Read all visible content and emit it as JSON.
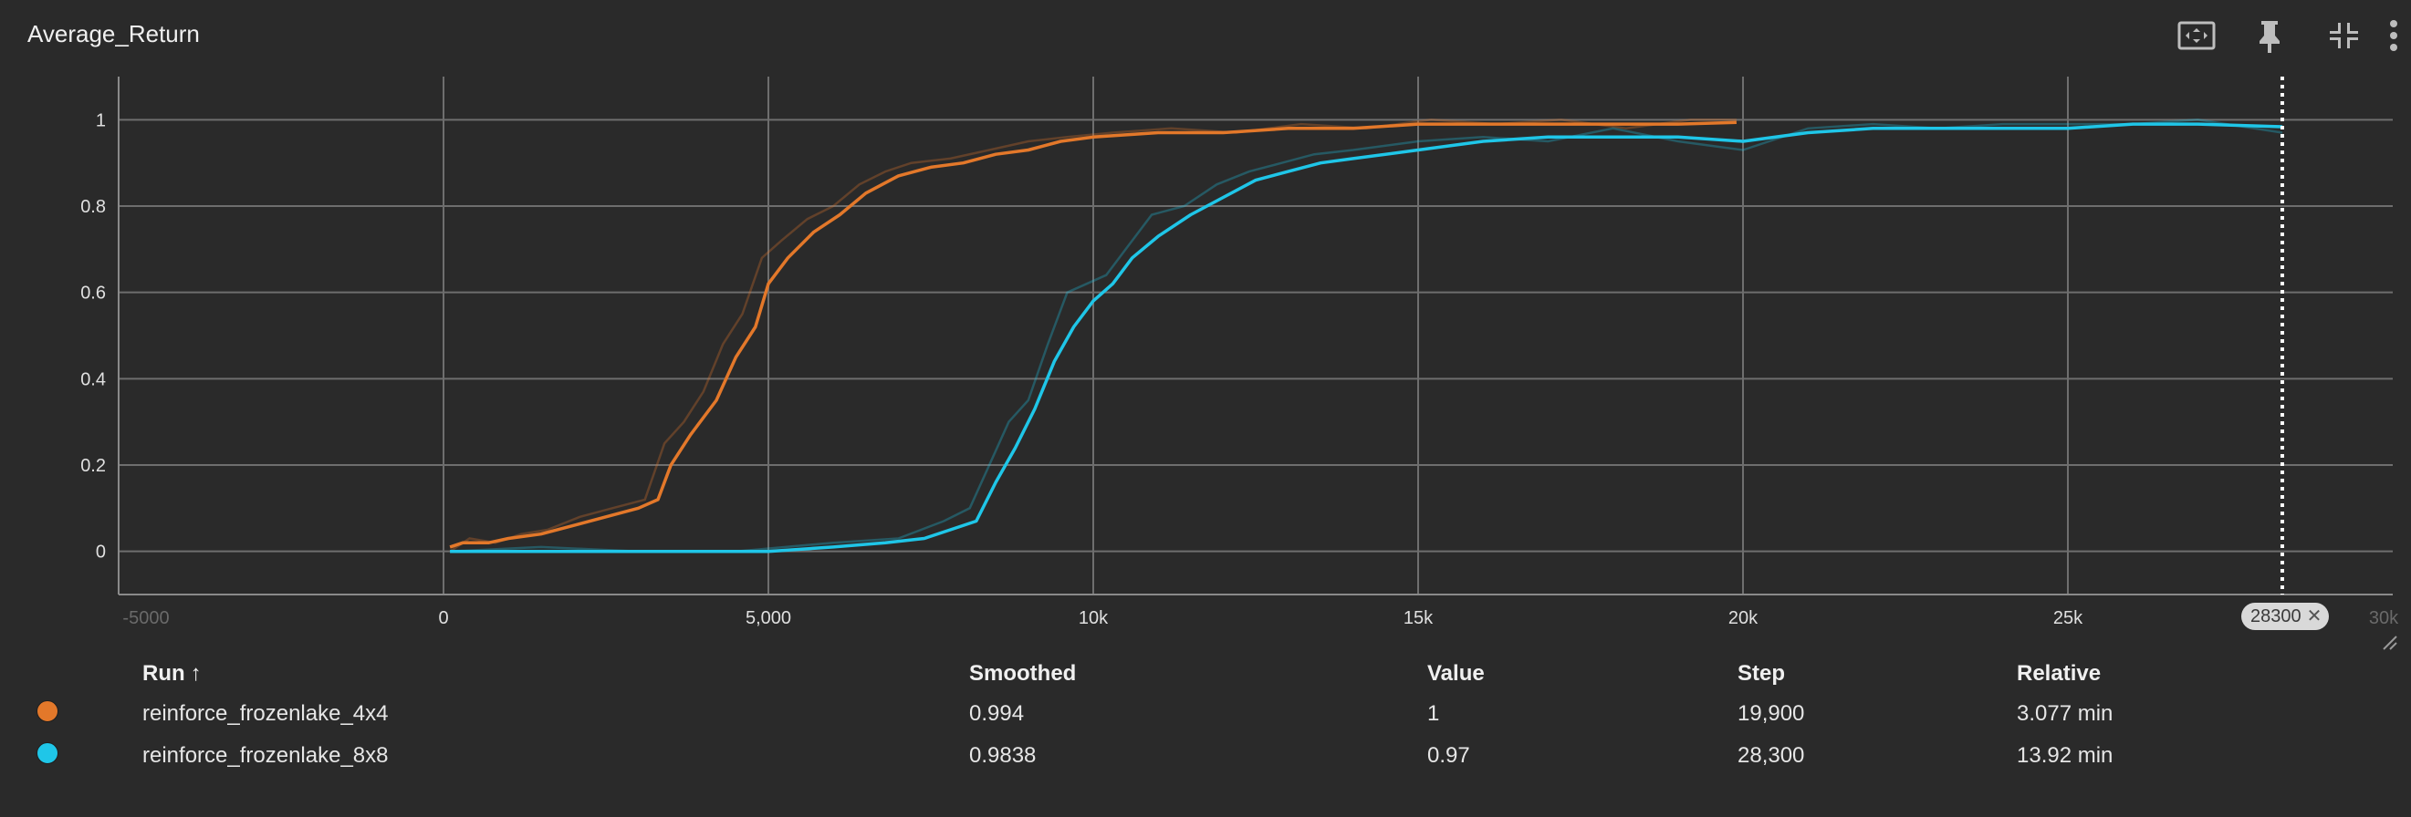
{
  "header": {
    "title": "Average_Return",
    "icons": [
      "fit-domain-icon",
      "pin-icon",
      "collapse-icon",
      "more-vert-icon"
    ]
  },
  "chart_data": {
    "type": "line",
    "title": "Average_Return",
    "xlabel": "",
    "ylabel": "",
    "xlim": [
      -5000,
      30000
    ],
    "ylim": [
      -0.1,
      1.1
    ],
    "x_ticks": [
      "0",
      "5,000",
      "10k",
      "15k",
      "20k",
      "25k"
    ],
    "x_tick_values": [
      0,
      5000,
      10000,
      15000,
      20000,
      25000
    ],
    "x_ticks_faint": [
      "-5000",
      "30k"
    ],
    "y_ticks": [
      "0",
      "0.2",
      "0.4",
      "0.6",
      "0.8",
      "1"
    ],
    "y_tick_values": [
      0,
      0.2,
      0.4,
      0.6,
      0.8,
      1.0
    ],
    "grid": true,
    "marker_step": 28300,
    "marker_label": "28300",
    "series": [
      {
        "name": "reinforce_frozenlake_4x4",
        "color": "#e3782a",
        "smoothed": [
          [
            100,
            0.01
          ],
          [
            300,
            0.02
          ],
          [
            700,
            0.02
          ],
          [
            1000,
            0.03
          ],
          [
            1500,
            0.04
          ],
          [
            2000,
            0.06
          ],
          [
            2500,
            0.08
          ],
          [
            3000,
            0.1
          ],
          [
            3300,
            0.12
          ],
          [
            3500,
            0.2
          ],
          [
            3800,
            0.27
          ],
          [
            4200,
            0.35
          ],
          [
            4500,
            0.45
          ],
          [
            4800,
            0.52
          ],
          [
            5000,
            0.62
          ],
          [
            5300,
            0.68
          ],
          [
            5700,
            0.74
          ],
          [
            6100,
            0.78
          ],
          [
            6500,
            0.83
          ],
          [
            7000,
            0.87
          ],
          [
            7500,
            0.89
          ],
          [
            8000,
            0.9
          ],
          [
            8500,
            0.92
          ],
          [
            9000,
            0.93
          ],
          [
            9500,
            0.95
          ],
          [
            10000,
            0.96
          ],
          [
            11000,
            0.97
          ],
          [
            12000,
            0.97
          ],
          [
            13000,
            0.98
          ],
          [
            14000,
            0.98
          ],
          [
            15000,
            0.99
          ],
          [
            16000,
            0.99
          ],
          [
            17000,
            0.99
          ],
          [
            18000,
            0.99
          ],
          [
            19000,
            0.99
          ],
          [
            19900,
            0.994
          ]
        ],
        "raw": [
          [
            100,
            0.0
          ],
          [
            400,
            0.03
          ],
          [
            800,
            0.02
          ],
          [
            1200,
            0.04
          ],
          [
            1600,
            0.05
          ],
          [
            2100,
            0.08
          ],
          [
            2600,
            0.1
          ],
          [
            3100,
            0.12
          ],
          [
            3400,
            0.25
          ],
          [
            3700,
            0.3
          ],
          [
            4000,
            0.37
          ],
          [
            4300,
            0.48
          ],
          [
            4600,
            0.55
          ],
          [
            4900,
            0.68
          ],
          [
            5200,
            0.72
          ],
          [
            5600,
            0.77
          ],
          [
            6000,
            0.8
          ],
          [
            6400,
            0.85
          ],
          [
            6800,
            0.88
          ],
          [
            7200,
            0.9
          ],
          [
            7800,
            0.91
          ],
          [
            8400,
            0.93
          ],
          [
            9000,
            0.95
          ],
          [
            9600,
            0.96
          ],
          [
            10300,
            0.97
          ],
          [
            11200,
            0.98
          ],
          [
            12200,
            0.97
          ],
          [
            13200,
            0.99
          ],
          [
            14200,
            0.98
          ],
          [
            15200,
            1.0
          ],
          [
            16200,
            0.99
          ],
          [
            17200,
            1.0
          ],
          [
            18200,
            0.98
          ],
          [
            19200,
            1.0
          ],
          [
            19900,
            1.0
          ]
        ],
        "smoothed_last": "0.994",
        "value": "1",
        "step": "19,900",
        "relative": "3.077 min"
      },
      {
        "name": "reinforce_frozenlake_8x8",
        "color": "#1fc6e8",
        "smoothed": [
          [
            100,
            0.0
          ],
          [
            1000,
            0.0
          ],
          [
            2000,
            0.0
          ],
          [
            3000,
            0.0
          ],
          [
            4000,
            0.0
          ],
          [
            5000,
            0.0
          ],
          [
            6000,
            0.01
          ],
          [
            6800,
            0.02
          ],
          [
            7400,
            0.03
          ],
          [
            7800,
            0.05
          ],
          [
            8200,
            0.07
          ],
          [
            8500,
            0.16
          ],
          [
            8800,
            0.24
          ],
          [
            9100,
            0.33
          ],
          [
            9400,
            0.44
          ],
          [
            9700,
            0.52
          ],
          [
            10000,
            0.58
          ],
          [
            10300,
            0.62
          ],
          [
            10600,
            0.68
          ],
          [
            11000,
            0.73
          ],
          [
            11500,
            0.78
          ],
          [
            12000,
            0.82
          ],
          [
            12500,
            0.86
          ],
          [
            13000,
            0.88
          ],
          [
            13500,
            0.9
          ],
          [
            14000,
            0.91
          ],
          [
            15000,
            0.93
          ],
          [
            16000,
            0.95
          ],
          [
            17000,
            0.96
          ],
          [
            18000,
            0.96
          ],
          [
            19000,
            0.96
          ],
          [
            20000,
            0.95
          ],
          [
            21000,
            0.97
          ],
          [
            22000,
            0.98
          ],
          [
            23000,
            0.98
          ],
          [
            24000,
            0.98
          ],
          [
            25000,
            0.98
          ],
          [
            26000,
            0.99
          ],
          [
            27000,
            0.99
          ],
          [
            28300,
            0.9838
          ]
        ],
        "raw": [
          [
            100,
            0.0
          ],
          [
            1500,
            0.01
          ],
          [
            3000,
            0.0
          ],
          [
            4500,
            0.0
          ],
          [
            6000,
            0.02
          ],
          [
            7000,
            0.03
          ],
          [
            7700,
            0.07
          ],
          [
            8100,
            0.1
          ],
          [
            8400,
            0.2
          ],
          [
            8700,
            0.3
          ],
          [
            9000,
            0.35
          ],
          [
            9300,
            0.48
          ],
          [
            9600,
            0.6
          ],
          [
            9900,
            0.62
          ],
          [
            10200,
            0.64
          ],
          [
            10500,
            0.7
          ],
          [
            10900,
            0.78
          ],
          [
            11400,
            0.8
          ],
          [
            11900,
            0.85
          ],
          [
            12400,
            0.88
          ],
          [
            12900,
            0.9
          ],
          [
            13400,
            0.92
          ],
          [
            14000,
            0.93
          ],
          [
            15000,
            0.95
          ],
          [
            16000,
            0.96
          ],
          [
            17000,
            0.95
          ],
          [
            18000,
            0.98
          ],
          [
            19000,
            0.95
          ],
          [
            20000,
            0.93
          ],
          [
            21000,
            0.98
          ],
          [
            22000,
            0.99
          ],
          [
            23000,
            0.98
          ],
          [
            24000,
            0.99
          ],
          [
            25000,
            0.99
          ],
          [
            26000,
            0.99
          ],
          [
            27000,
            1.0
          ],
          [
            28300,
            0.97
          ]
        ],
        "smoothed_last": "0.9838",
        "value": "0.97",
        "step": "28,300",
        "relative": "13.92 min"
      }
    ]
  },
  "table": {
    "headers": {
      "run": "Run",
      "sort": "↑",
      "smoothed": "Smoothed",
      "value": "Value",
      "step": "Step",
      "relative": "Relative"
    }
  }
}
